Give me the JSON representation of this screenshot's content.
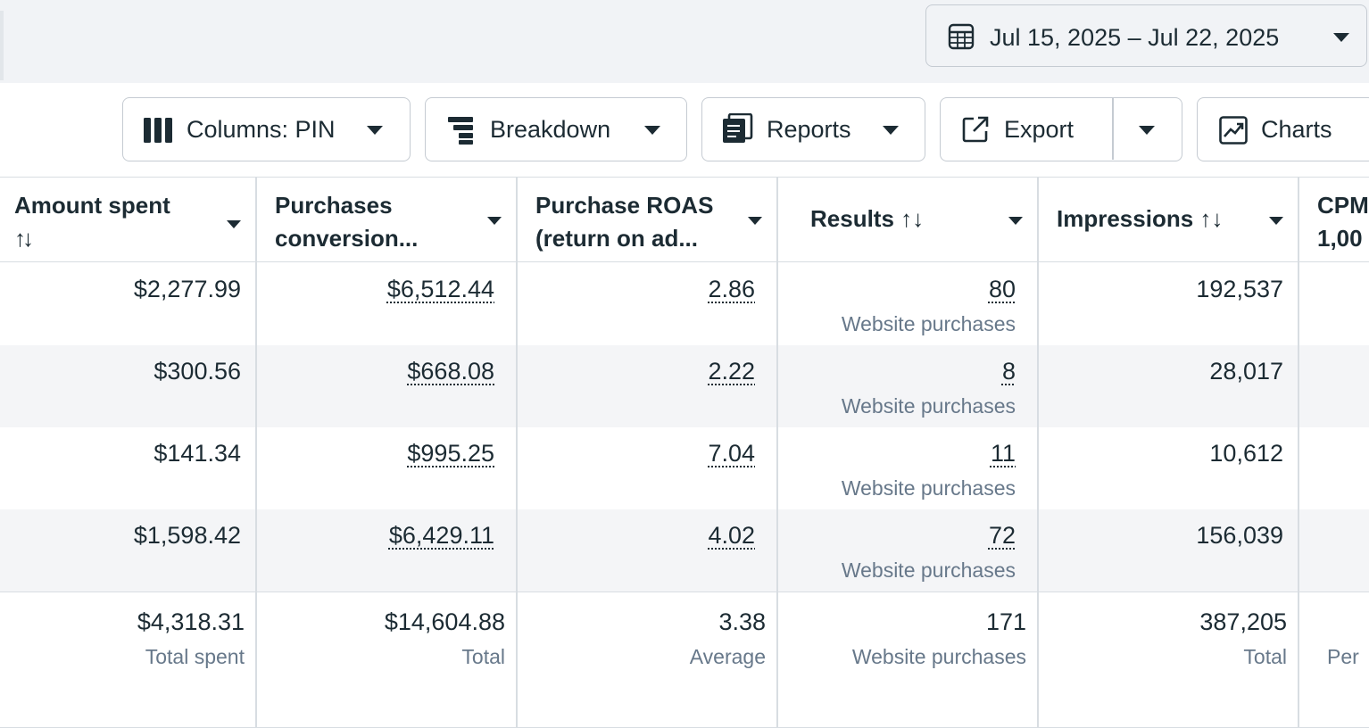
{
  "date_range": {
    "label": "Jul 15, 2025 – Jul 22, 2025"
  },
  "toolbar": {
    "columns_label": "Columns: PIN",
    "breakdown_label": "Breakdown",
    "reports_label": "Reports",
    "export_label": "Export",
    "charts_label": "Charts"
  },
  "table": {
    "headers": {
      "amount_spent": [
        "Amount spent",
        "↑↓"
      ],
      "purchases_conversion": [
        "Purchases",
        "conversion..."
      ],
      "purchase_roas": [
        "Purchase ROAS",
        "(return on ad..."
      ],
      "results": "Results ↑↓",
      "impressions": "Impressions ↑↓",
      "cpm": [
        "CPM",
        "1,00"
      ]
    },
    "rows": [
      {
        "amount_spent": "$2,277.99",
        "purchases_conversion": "$6,512.44",
        "roas": "2.86",
        "results": "80",
        "results_sub": "Website purchases",
        "impressions": "192,537"
      },
      {
        "amount_spent": "$300.56",
        "purchases_conversion": "$668.08",
        "roas": "2.22",
        "results": "8",
        "results_sub": "Website purchases",
        "impressions": "28,017"
      },
      {
        "amount_spent": "$141.34",
        "purchases_conversion": "$995.25",
        "roas": "7.04",
        "results": "11",
        "results_sub": "Website purchases",
        "impressions": "10,612"
      },
      {
        "amount_spent": "$1,598.42",
        "purchases_conversion": "$6,429.11",
        "roas": "4.02",
        "results": "72",
        "results_sub": "Website purchases",
        "impressions": "156,039"
      }
    ],
    "totals": {
      "amount_spent": "$4,318.31",
      "amount_spent_sub": "Total spent",
      "purchases_conversion": "$14,604.88",
      "purchases_conversion_sub": "Total",
      "roas": "3.38",
      "roas_sub": "Average",
      "results": "171",
      "results_sub": "Website purchases",
      "impressions": "387,205",
      "impressions_sub": "Total",
      "cpm_sub": "Per"
    }
  },
  "icons": {
    "calendar": "calendar-icon",
    "columns": "columns-icon",
    "breakdown": "breakdown-icon",
    "reports": "reports-icon",
    "export": "export-icon",
    "charts": "charts-icon"
  }
}
